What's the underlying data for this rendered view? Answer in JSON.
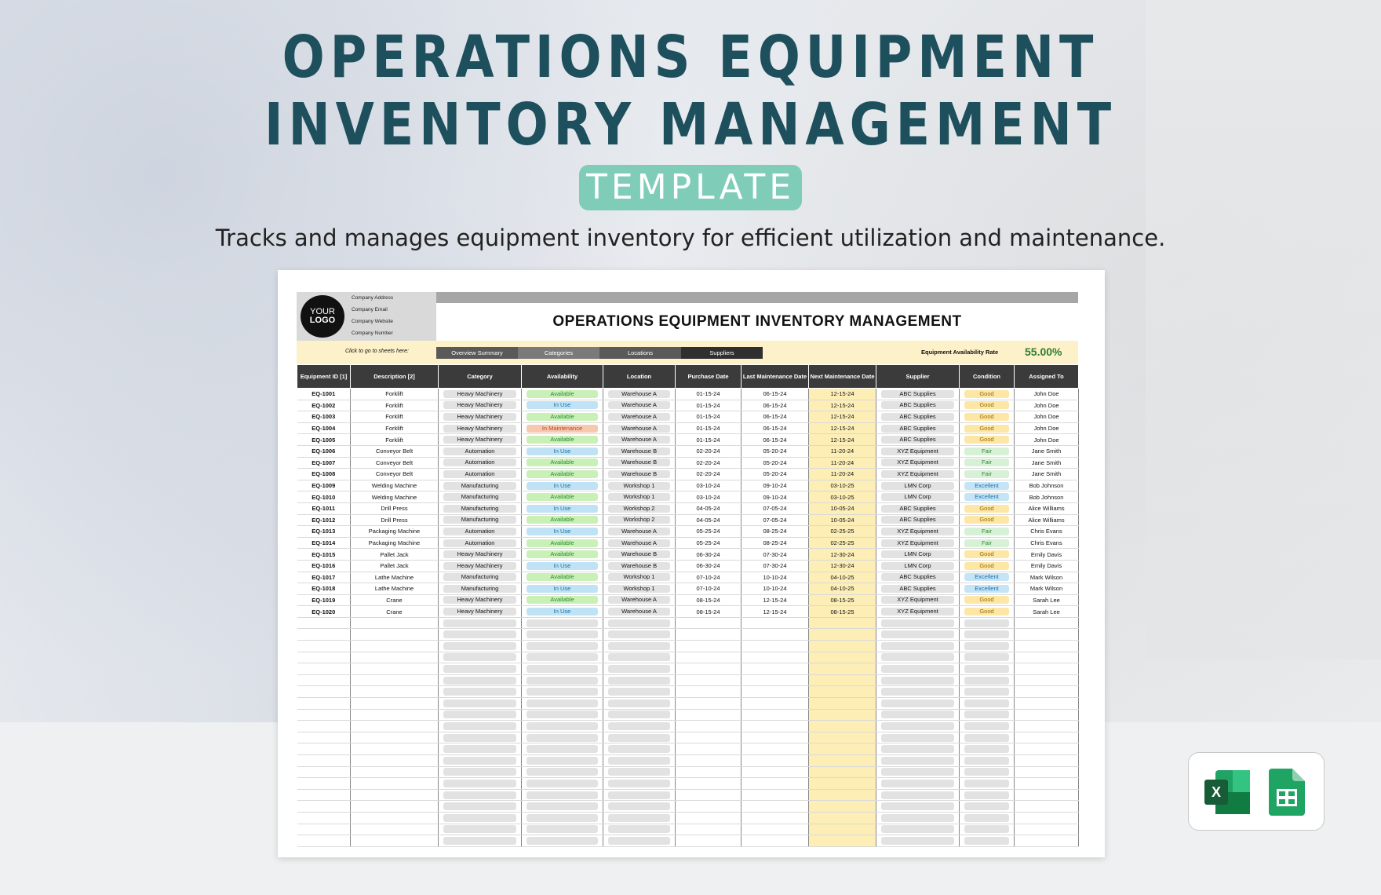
{
  "hero": {
    "title_line1": "OPERATIONS EQUIPMENT",
    "title_line2": "INVENTORY MANAGEMENT",
    "pill": "TEMPLATE",
    "subtitle": "Tracks and manages equipment inventory for efficient utilization and maintenance."
  },
  "sheet": {
    "logo_line1": "YOUR",
    "logo_line2": "LOGO",
    "company_address": "Company Address",
    "company_email": "Company Email",
    "company_website": "Company Website",
    "company_number": "Company Number",
    "title": "OPERATIONS EQUIPMENT INVENTORY MANAGEMENT",
    "nav_hint": "Click to go to sheets here:",
    "nav": [
      "Overview Summary",
      "Categories",
      "Locations",
      "Suppliers"
    ],
    "rate_label": "Equipment Availability Rate",
    "rate_value": "55.00%",
    "columns": [
      "Equipment ID [1]",
      "Description [2]",
      "Category",
      "Availability",
      "Location",
      "Purchase Date",
      "Last Maintenance Date",
      "Next Maintenance Date",
      "Supplier",
      "Condition",
      "Assigned To"
    ],
    "rows": [
      [
        "EQ-1001",
        "Forklift",
        "Heavy Machinery",
        "Available",
        "Warehouse A",
        "01-15-24",
        "06-15-24",
        "12-15-24",
        "ABC Supplies",
        "Good",
        "John Doe"
      ],
      [
        "EQ-1002",
        "Forklift",
        "Heavy Machinery",
        "In Use",
        "Warehouse A",
        "01-15-24",
        "06-15-24",
        "12-15-24",
        "ABC Supplies",
        "Good",
        "John Doe"
      ],
      [
        "EQ-1003",
        "Forklift",
        "Heavy Machinery",
        "Available",
        "Warehouse A",
        "01-15-24",
        "06-15-24",
        "12-15-24",
        "ABC Supplies",
        "Good",
        "John Doe"
      ],
      [
        "EQ-1004",
        "Forklift",
        "Heavy Machinery",
        "In Maintenance",
        "Warehouse A",
        "01-15-24",
        "06-15-24",
        "12-15-24",
        "ABC Supplies",
        "Good",
        "John Doe"
      ],
      [
        "EQ-1005",
        "Forklift",
        "Heavy Machinery",
        "Available",
        "Warehouse A",
        "01-15-24",
        "06-15-24",
        "12-15-24",
        "ABC Supplies",
        "Good",
        "John Doe"
      ],
      [
        "EQ-1006",
        "Conveyor Belt",
        "Automation",
        "In Use",
        "Warehouse B",
        "02-20-24",
        "05-20-24",
        "11-20-24",
        "XYZ Equipment",
        "Fair",
        "Jane Smith"
      ],
      [
        "EQ-1007",
        "Conveyor Belt",
        "Automation",
        "Available",
        "Warehouse B",
        "02-20-24",
        "05-20-24",
        "11-20-24",
        "XYZ Equipment",
        "Fair",
        "Jane Smith"
      ],
      [
        "EQ-1008",
        "Conveyor Belt",
        "Automation",
        "Available",
        "Warehouse B",
        "02-20-24",
        "05-20-24",
        "11-20-24",
        "XYZ Equipment",
        "Fair",
        "Jane Smith"
      ],
      [
        "EQ-1009",
        "Welding Machine",
        "Manufacturing",
        "In Use",
        "Workshop 1",
        "03-10-24",
        "09-10-24",
        "03-10-25",
        "LMN Corp",
        "Excellent",
        "Bob Johnson"
      ],
      [
        "EQ-1010",
        "Welding Machine",
        "Manufacturing",
        "Available",
        "Workshop 1",
        "03-10-24",
        "09-10-24",
        "03-10-25",
        "LMN Corp",
        "Excellent",
        "Bob Johnson"
      ],
      [
        "EQ-1011",
        "Drill Press",
        "Manufacturing",
        "In Use",
        "Workshop 2",
        "04-05-24",
        "07-05-24",
        "10-05-24",
        "ABC Supplies",
        "Good",
        "Alice Williams"
      ],
      [
        "EQ-1012",
        "Drill Press",
        "Manufacturing",
        "Available",
        "Workshop 2",
        "04-05-24",
        "07-05-24",
        "10-05-24",
        "ABC Supplies",
        "Good",
        "Alice Williams"
      ],
      [
        "EQ-1013",
        "Packaging Machine",
        "Automation",
        "In Use",
        "Warehouse A",
        "05-25-24",
        "08-25-24",
        "02-25-25",
        "XYZ Equipment",
        "Fair",
        "Chris Evans"
      ],
      [
        "EQ-1014",
        "Packaging Machine",
        "Automation",
        "Available",
        "Warehouse A",
        "05-25-24",
        "08-25-24",
        "02-25-25",
        "XYZ Equipment",
        "Fair",
        "Chris Evans"
      ],
      [
        "EQ-1015",
        "Pallet Jack",
        "Heavy Machinery",
        "Available",
        "Warehouse B",
        "06-30-24",
        "07-30-24",
        "12-30-24",
        "LMN Corp",
        "Good",
        "Emily Davis"
      ],
      [
        "EQ-1016",
        "Pallet Jack",
        "Heavy Machinery",
        "In Use",
        "Warehouse B",
        "06-30-24",
        "07-30-24",
        "12-30-24",
        "LMN Corp",
        "Good",
        "Emily Davis"
      ],
      [
        "EQ-1017",
        "Lathe Machine",
        "Manufacturing",
        "Available",
        "Workshop 1",
        "07-10-24",
        "10-10-24",
        "04-10-25",
        "ABC Supplies",
        "Excellent",
        "Mark Wilson"
      ],
      [
        "EQ-1018",
        "Lathe Machine",
        "Manufacturing",
        "In Use",
        "Workshop 1",
        "07-10-24",
        "10-10-24",
        "04-10-25",
        "ABC Supplies",
        "Excellent",
        "Mark Wilson"
      ],
      [
        "EQ-1019",
        "Crane",
        "Heavy Machinery",
        "Available",
        "Warehouse A",
        "08-15-24",
        "12-15-24",
        "08-15-25",
        "XYZ Equipment",
        "Good",
        "Sarah Lee"
      ],
      [
        "EQ-1020",
        "Crane",
        "Heavy Machinery",
        "In Use",
        "Warehouse A",
        "08-15-24",
        "12-15-24",
        "08-15-25",
        "XYZ Equipment",
        "Good",
        "Sarah Lee"
      ]
    ]
  },
  "icons": [
    "excel-icon",
    "google-sheets-icon"
  ],
  "colors": {
    "title": "#1d4f5c",
    "pill": "#7fcdb9",
    "header_bg": "#3b3b3b",
    "nav_bg": "#fdf1c9",
    "rate": "#2e7d32",
    "next_maintenance_bg": "#fdeeb6"
  }
}
